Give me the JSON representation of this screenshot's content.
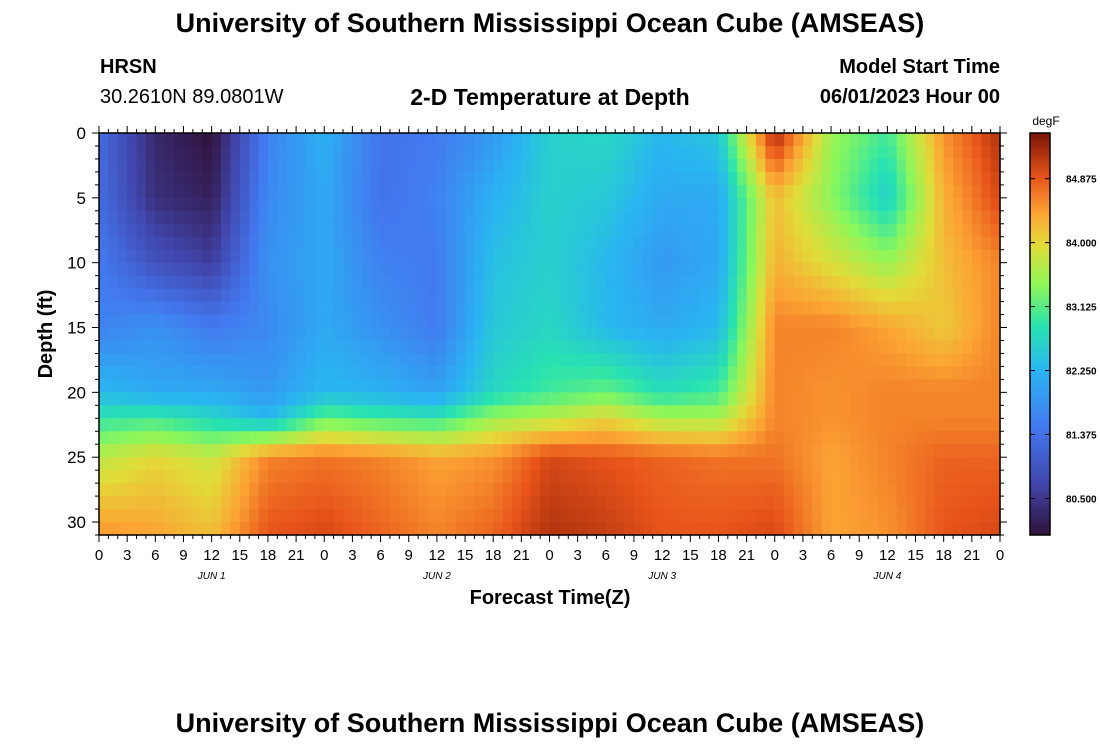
{
  "page": {
    "title": "University of Southern Mississippi Ocean Cube (AMSEAS)",
    "title_repeat": "University of Southern Mississippi Ocean Cube (AMSEAS)",
    "station": "HRSN",
    "coords": "30.2610N  89.0801W",
    "plot_title": "2-D Temperature at Depth",
    "model_start_label": "Model Start Time",
    "model_start_value": "06/01/2023 Hour 00"
  },
  "chart_data": {
    "type": "heatmap",
    "title": "2-D Temperature at Depth",
    "xlabel": "Forecast Time(Z)",
    "ylabel": "Depth (ft)",
    "colorbar_label": "degF",
    "x_hours": [
      0,
      96
    ],
    "ylim": [
      0,
      31
    ],
    "x_tick_labels": [
      "0",
      "3",
      "6",
      "9",
      "12",
      "15",
      "18",
      "21",
      "0",
      "3",
      "6",
      "9",
      "12",
      "15",
      "18",
      "21",
      "0",
      "3",
      "6",
      "9",
      "12",
      "15",
      "18",
      "21",
      "0",
      "3",
      "6",
      "9",
      "12",
      "15",
      "18",
      "21",
      "0"
    ],
    "y_tick_labels": [
      "0",
      "5",
      "10",
      "15",
      "20",
      "25",
      "30"
    ],
    "y_tick_values": [
      0,
      5,
      10,
      15,
      20,
      25,
      30
    ],
    "day_labels": [
      {
        "label": "JUN 1",
        "hour": 12
      },
      {
        "label": "JUN 2",
        "hour": 36
      },
      {
        "label": "JUN 3",
        "hour": 60
      },
      {
        "label": "JUN 4",
        "hour": 84
      }
    ],
    "colorbar_ticks": [
      "84.875",
      "84.000",
      "83.125",
      "82.250",
      "81.375",
      "80.500"
    ],
    "colorbar_tick_values": [
      84.875,
      84.0,
      83.125,
      82.25,
      81.375,
      80.5
    ],
    "vmin": 80.0,
    "vmax": 85.5,
    "grid_hours": [
      0,
      6,
      12,
      18,
      24,
      30,
      36,
      42,
      48,
      54,
      60,
      66,
      72,
      78,
      84,
      90,
      96
    ],
    "grid_depths": [
      0,
      5,
      10,
      15,
      20,
      22,
      25,
      31
    ],
    "temperature_degF": [
      [
        81.3,
        80.3,
        80.0,
        81.6,
        82.2,
        81.4,
        81.5,
        81.9,
        82.6,
        82.7,
        82.3,
        82.5,
        85.3,
        83.5,
        83.0,
        84.5,
        85.2
      ],
      [
        81.3,
        80.4,
        80.2,
        81.7,
        82.1,
        81.4,
        81.6,
        82.2,
        82.6,
        82.5,
        82.1,
        82.1,
        84.2,
        83.4,
        82.6,
        84.3,
        85.0
      ],
      [
        81.5,
        80.9,
        80.6,
        81.8,
        82.1,
        81.6,
        81.5,
        82.4,
        82.6,
        82.3,
        81.9,
        82.1,
        84.3,
        83.9,
        83.5,
        84.2,
        84.6
      ],
      [
        81.6,
        81.8,
        81.5,
        81.7,
        82.1,
        81.8,
        81.5,
        82.5,
        82.7,
        82.3,
        82.1,
        82.3,
        84.6,
        84.6,
        84.4,
        84.1,
        84.6
      ],
      [
        82.3,
        82.1,
        82.1,
        81.9,
        82.3,
        82.2,
        82.0,
        82.7,
        83.0,
        83.2,
        82.8,
        83.0,
        84.6,
        84.5,
        84.6,
        84.6,
        84.6
      ],
      [
        82.9,
        83.0,
        82.7,
        82.3,
        83.2,
        83.0,
        82.9,
        83.5,
        83.7,
        84.0,
        83.6,
        83.6,
        84.6,
        84.5,
        84.6,
        84.6,
        84.6
      ],
      [
        83.7,
        84.0,
        83.8,
        84.6,
        84.7,
        84.6,
        84.4,
        84.5,
        85.0,
        84.9,
        84.8,
        84.7,
        84.7,
        84.4,
        84.6,
        84.8,
        84.8
      ],
      [
        84.5,
        84.4,
        84.2,
        84.9,
        85.0,
        84.8,
        84.6,
        84.8,
        85.2,
        85.1,
        84.9,
        84.9,
        85.0,
        84.4,
        84.5,
        84.9,
        85.0
      ]
    ]
  }
}
